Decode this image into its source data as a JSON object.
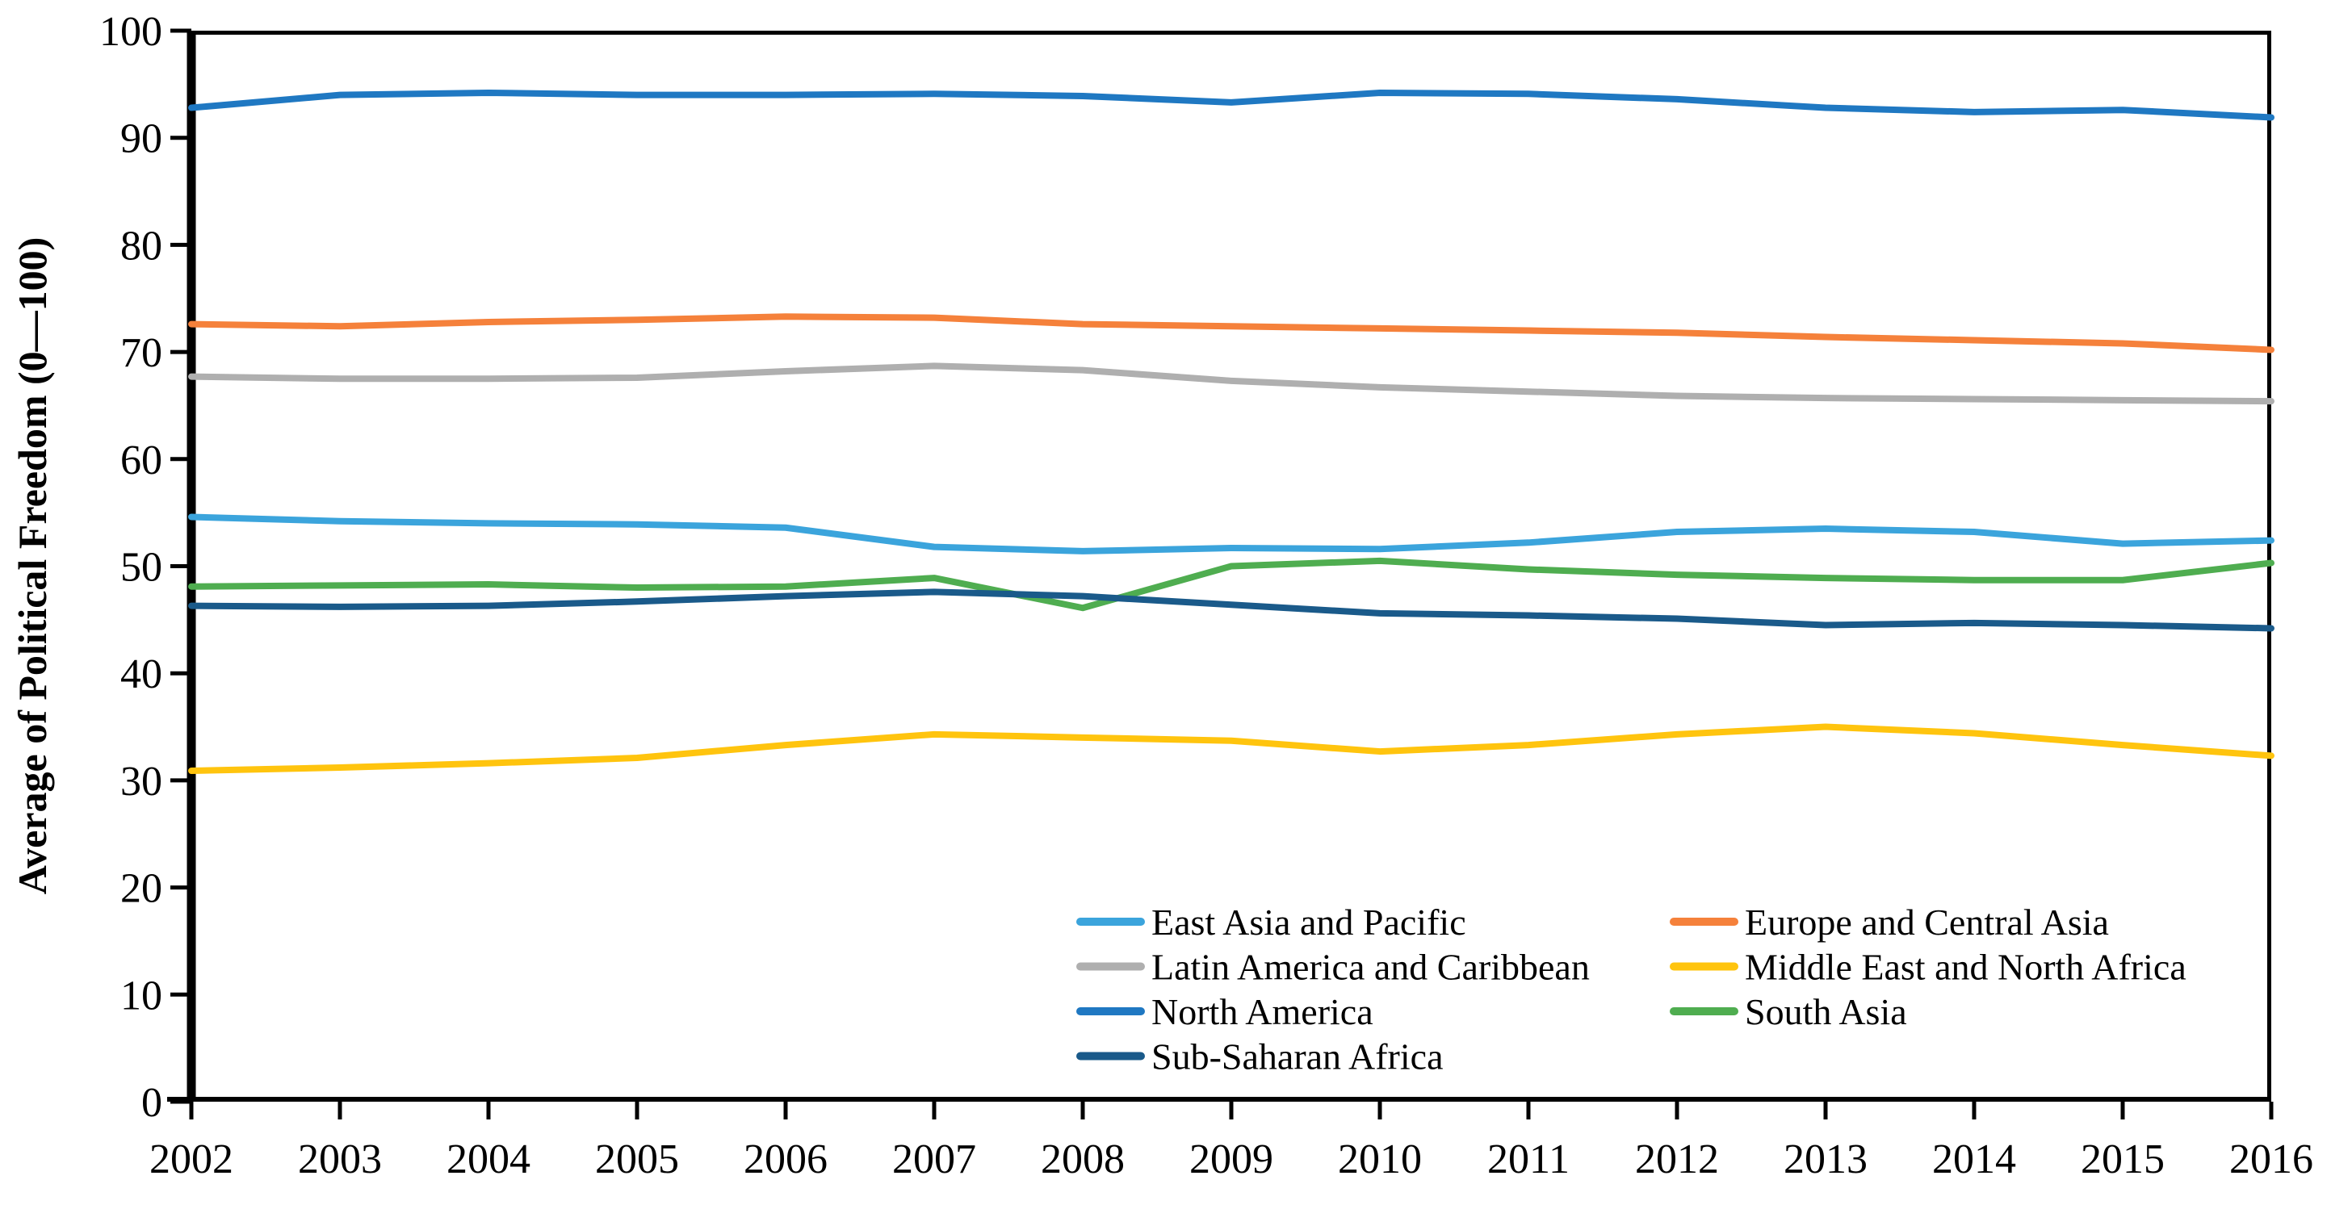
{
  "chart_data": {
    "type": "line",
    "title": "",
    "xlabel": "",
    "ylabel": "Average of Political Freedom (0—100)",
    "x": [
      2002,
      2003,
      2004,
      2005,
      2006,
      2007,
      2008,
      2009,
      2010,
      2011,
      2012,
      2013,
      2014,
      2015,
      2016
    ],
    "ylim": [
      0,
      100
    ],
    "y_ticks": [
      0,
      10,
      20,
      30,
      40,
      50,
      60,
      70,
      80,
      90,
      100
    ],
    "grid": false,
    "legend_position": "inside-bottom, two columns",
    "axis_color": "#000000",
    "series": [
      {
        "name": "East Asia and Pacific",
        "color": "#3BA4DC",
        "values": [
          54.6,
          54.2,
          54.0,
          53.9,
          53.6,
          51.8,
          51.4,
          51.7,
          51.6,
          52.2,
          53.2,
          53.5,
          53.2,
          52.1,
          52.4
        ]
      },
      {
        "name": "Europe and Central Asia",
        "color": "#F5813B",
        "values": [
          72.6,
          72.4,
          72.8,
          73.0,
          73.3,
          73.2,
          72.6,
          72.4,
          72.2,
          72.0,
          71.8,
          71.4,
          71.1,
          70.8,
          70.2
        ]
      },
      {
        "name": "Latin America and Caribbean",
        "color": "#AFAFAF",
        "values": [
          67.7,
          67.5,
          67.5,
          67.6,
          68.2,
          68.7,
          68.3,
          67.3,
          66.7,
          66.3,
          65.9,
          65.7,
          65.6,
          65.5,
          65.4
        ]
      },
      {
        "name": "Middle East and North Africa",
        "color": "#FFC40E",
        "values": [
          30.9,
          31.2,
          31.6,
          32.1,
          33.3,
          34.3,
          34.0,
          33.7,
          32.7,
          33.3,
          34.3,
          35.0,
          34.4,
          33.3,
          32.3
        ]
      },
      {
        "name": "North America",
        "color": "#1F78C2",
        "values": [
          92.8,
          94.0,
          94.2,
          94.0,
          94.0,
          94.1,
          93.9,
          93.3,
          94.2,
          94.1,
          93.6,
          92.8,
          92.4,
          92.6,
          91.9
        ]
      },
      {
        "name": "South Asia",
        "color": "#4FAD50",
        "values": [
          48.1,
          48.2,
          48.3,
          48.0,
          48.1,
          48.9,
          46.1,
          50.0,
          50.5,
          49.7,
          49.2,
          48.9,
          48.7,
          48.7,
          50.3
        ]
      },
      {
        "name": "Sub-Saharan Africa",
        "color": "#1A5A8A",
        "values": [
          46.3,
          46.2,
          46.3,
          46.7,
          47.2,
          47.6,
          47.2,
          46.4,
          45.6,
          45.4,
          45.1,
          44.5,
          44.7,
          44.5,
          44.2
        ]
      }
    ],
    "legend_columns": [
      [
        0,
        2,
        4,
        6
      ],
      [
        1,
        3,
        5
      ]
    ]
  }
}
